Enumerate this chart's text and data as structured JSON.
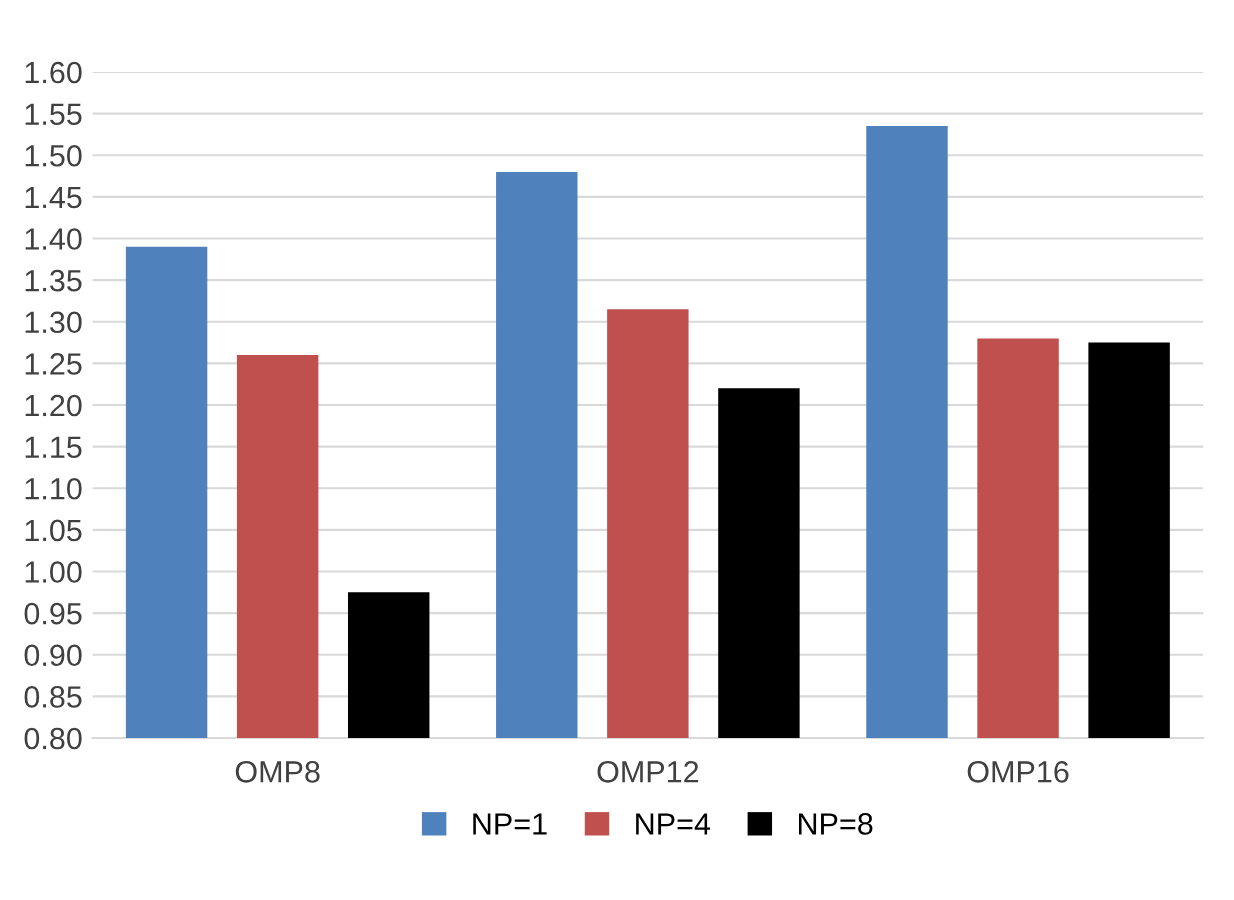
{
  "chart_data": {
    "type": "bar",
    "categories": [
      "OMP8",
      "OMP12",
      "OMP16"
    ],
    "series": [
      {
        "name": "NP=1",
        "color": "#4f81bd",
        "values": [
          1.39,
          1.48,
          1.535
        ]
      },
      {
        "name": "NP=4",
        "color": "#c0504d",
        "values": [
          1.26,
          1.315,
          1.28
        ]
      },
      {
        "name": "NP=8",
        "color": "#000000",
        "values": [
          0.975,
          1.22,
          1.275
        ]
      }
    ],
    "ylim": [
      0.8,
      1.6
    ],
    "yticks": [
      {
        "value": 0.8,
        "label": "0.80"
      },
      {
        "value": 0.85,
        "label": "0.85"
      },
      {
        "value": 0.9,
        "label": "0.90"
      },
      {
        "value": 0.95,
        "label": "0.95"
      },
      {
        "value": 1.0,
        "label": "1.00"
      },
      {
        "value": 1.05,
        "label": "1.05"
      },
      {
        "value": 1.1,
        "label": "1.10"
      },
      {
        "value": 1.15,
        "label": "1.15"
      },
      {
        "value": 1.2,
        "label": "1.20"
      },
      {
        "value": 1.25,
        "label": "1.25"
      },
      {
        "value": 1.3,
        "label": "1.30"
      },
      {
        "value": 1.35,
        "label": "1.35"
      },
      {
        "value": 1.4,
        "label": "1.40"
      },
      {
        "value": 1.45,
        "label": "1.45"
      },
      {
        "value": 1.5,
        "label": "1.50"
      },
      {
        "value": 1.55,
        "label": "1.55"
      },
      {
        "value": 1.6,
        "label": "1.60"
      }
    ],
    "grid": "y",
    "legend": "bottom"
  }
}
